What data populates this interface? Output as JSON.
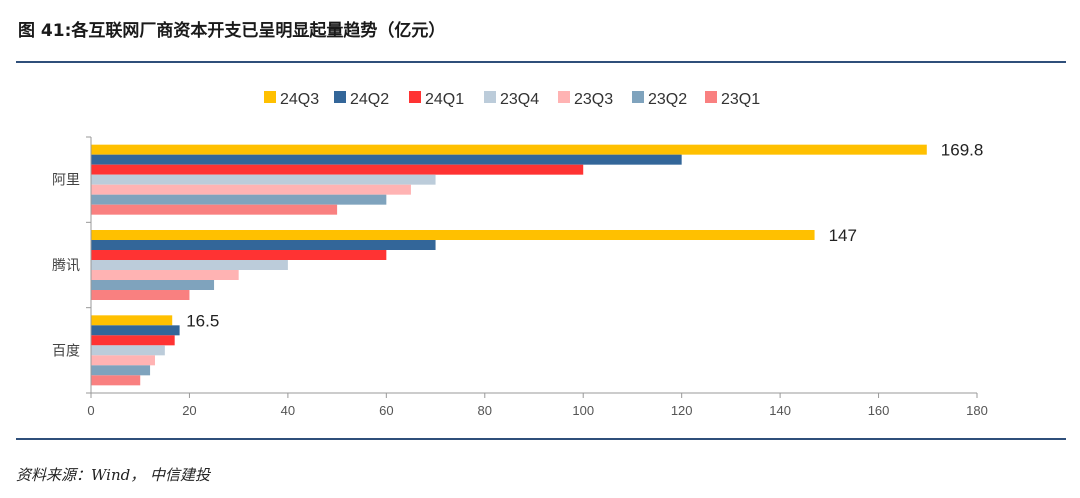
{
  "header": {
    "title": "图 41:各互联网厂商资本开支已呈明显起量趋势（亿元）"
  },
  "footer": {
    "source": "资料来源：Wind， 中信建投"
  },
  "chart_data": {
    "type": "bar",
    "orientation": "horizontal",
    "title": "图 41:各互联网厂商资本开支已呈明显起量趋势（亿元）",
    "categories": [
      "阿里",
      "腾讯",
      "百度"
    ],
    "series": [
      {
        "name": "24Q3",
        "color": "#FFC000",
        "values": [
          169.8,
          147,
          16.5
        ]
      },
      {
        "name": "24Q2",
        "color": "#336699",
        "values": [
          120,
          70,
          18
        ]
      },
      {
        "name": "24Q1",
        "color": "#FF3333",
        "values": [
          100,
          60,
          17
        ]
      },
      {
        "name": "23Q4",
        "color": "#BCCCDA",
        "values": [
          70,
          40,
          15
        ]
      },
      {
        "name": "23Q3",
        "color": "#FFB3B3",
        "values": [
          65,
          30,
          13
        ]
      },
      {
        "name": "23Q2",
        "color": "#7FA3BD",
        "values": [
          60,
          25,
          12
        ]
      },
      {
        "name": "23Q1",
        "color": "#F98080",
        "values": [
          50,
          20,
          10
        ]
      }
    ],
    "data_labels": [
      {
        "category": "阿里",
        "series": "24Q3",
        "text": "169.8"
      },
      {
        "category": "腾讯",
        "series": "24Q3",
        "text": "147"
      },
      {
        "category": "百度",
        "series": "24Q3",
        "text": "16.5"
      }
    ],
    "xlim": [
      0,
      180
    ],
    "xticks": [
      "0",
      "20",
      "40",
      "60",
      "80",
      "100",
      "120",
      "140",
      "160",
      "180"
    ],
    "legend_position": "top",
    "grid": false
  }
}
